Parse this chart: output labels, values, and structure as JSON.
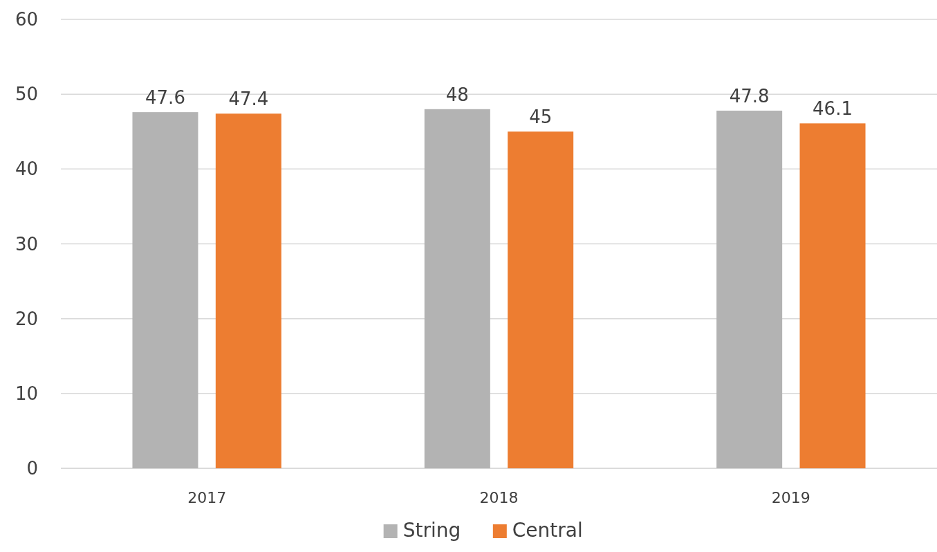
{
  "chart_data": {
    "type": "bar",
    "categories": [
      "2017",
      "2018",
      "2019"
    ],
    "series": [
      {
        "name": "String",
        "color": "#b3b3b3",
        "values": [
          47.6,
          48,
          47.8
        ]
      },
      {
        "name": "Central",
        "color": "#ed7d31",
        "values": [
          47.4,
          45,
          46.1
        ]
      }
    ],
    "ylim": [
      0,
      60
    ],
    "yticks": [
      0,
      10,
      20,
      30,
      40,
      50,
      60
    ],
    "grid": "y",
    "legend": "bottom",
    "data_labels": true
  }
}
